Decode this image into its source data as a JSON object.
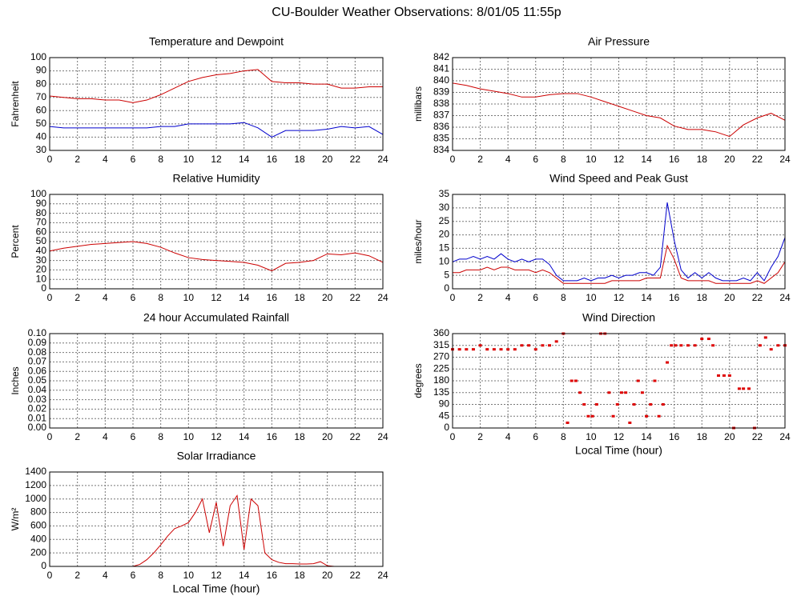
{
  "title": "CU-Boulder Weather Observations: 8/01/05 11:55p",
  "chart_data": [
    {
      "type": "line",
      "title": "Temperature and Dewpoint",
      "ylabel": "Fahrenheit",
      "x": [
        0,
        1,
        2,
        3,
        4,
        5,
        6,
        7,
        8,
        9,
        10,
        11,
        12,
        13,
        14,
        15,
        16,
        17,
        18,
        19,
        20,
        21,
        22,
        23,
        24
      ],
      "series": [
        {
          "color": "#cc0000",
          "values": [
            71,
            70,
            69,
            69,
            68,
            68,
            66,
            68,
            72,
            77,
            82,
            85,
            87,
            88,
            90,
            91,
            82,
            81,
            81,
            80,
            80,
            77,
            77,
            78,
            78
          ]
        },
        {
          "color": "#0000cc",
          "values": [
            48,
            47,
            47,
            47,
            47,
            47,
            47,
            47,
            48,
            48,
            50,
            50,
            50,
            50,
            51,
            47,
            40,
            45,
            45,
            45,
            46,
            48,
            47,
            48,
            42
          ]
        }
      ],
      "xlim": [
        0,
        24
      ],
      "xticks": [
        0,
        2,
        4,
        6,
        8,
        10,
        12,
        14,
        16,
        18,
        20,
        22,
        24
      ],
      "ylim": [
        30,
        100
      ],
      "yticks": [
        30,
        40,
        50,
        60,
        70,
        80,
        90,
        100
      ],
      "grid": true
    },
    {
      "type": "line",
      "title": "Air Pressure",
      "ylabel": "millibars",
      "x": [
        0,
        1,
        2,
        3,
        4,
        5,
        6,
        7,
        8,
        9,
        10,
        11,
        12,
        13,
        14,
        15,
        16,
        17,
        18,
        19,
        20,
        21,
        22,
        23,
        24
      ],
      "series": [
        {
          "color": "#cc0000",
          "values": [
            839.8,
            839.6,
            839.3,
            839.1,
            838.9,
            838.6,
            838.6,
            838.8,
            838.9,
            838.9,
            838.6,
            838.2,
            837.8,
            837.4,
            837.0,
            836.8,
            836.1,
            835.8,
            835.8,
            835.6,
            835.2,
            836.2,
            836.8,
            837.2,
            836.6
          ]
        }
      ],
      "xlim": [
        0,
        24
      ],
      "xticks": [
        0,
        2,
        4,
        6,
        8,
        10,
        12,
        14,
        16,
        18,
        20,
        22,
        24
      ],
      "ylim": [
        834,
        842
      ],
      "yticks": [
        834,
        835,
        836,
        837,
        838,
        839,
        840,
        841,
        842
      ],
      "grid": true
    },
    {
      "type": "line",
      "title": "Relative Humidity",
      "ylabel": "Percent",
      "x": [
        0,
        1,
        2,
        3,
        4,
        5,
        6,
        7,
        8,
        9,
        10,
        11,
        12,
        13,
        14,
        15,
        16,
        17,
        18,
        19,
        20,
        21,
        22,
        23,
        24
      ],
      "series": [
        {
          "color": "#cc0000",
          "values": [
            40,
            43,
            45,
            47,
            48,
            49,
            50,
            48,
            44,
            38,
            33,
            31,
            30,
            29,
            28,
            25,
            19,
            27,
            28,
            30,
            37,
            36,
            38,
            35,
            28
          ]
        }
      ],
      "xlim": [
        0,
        24
      ],
      "xticks": [
        0,
        2,
        4,
        6,
        8,
        10,
        12,
        14,
        16,
        18,
        20,
        22,
        24
      ],
      "ylim": [
        0,
        100
      ],
      "yticks": [
        0,
        10,
        20,
        30,
        40,
        50,
        60,
        70,
        80,
        90,
        100
      ],
      "grid": true
    },
    {
      "type": "line",
      "title": "Wind Speed and Peak Gust",
      "ylabel": "miles/hour",
      "x": [
        0,
        0.5,
        1,
        1.5,
        2,
        2.5,
        3,
        3.5,
        4,
        4.5,
        5,
        5.5,
        6,
        6.5,
        7,
        7.5,
        8,
        8.5,
        9,
        9.5,
        10,
        10.5,
        11,
        11.5,
        12,
        12.5,
        13,
        13.5,
        14,
        14.5,
        15,
        15.5,
        16,
        16.5,
        17,
        17.5,
        18,
        18.5,
        19,
        19.5,
        20,
        20.5,
        21,
        21.5,
        22,
        22.5,
        23,
        23.5,
        24
      ],
      "series": [
        {
          "color": "#0000cc",
          "values": [
            10,
            11,
            11,
            12,
            11,
            12,
            11,
            13,
            11,
            10,
            11,
            10,
            11,
            11,
            9,
            5,
            3,
            3,
            3,
            4,
            3,
            4,
            4,
            5,
            4,
            5,
            5,
            6,
            6,
            5,
            8,
            32,
            18,
            7,
            4,
            6,
            4,
            6,
            4,
            3,
            3,
            3,
            4,
            3,
            6,
            3,
            8,
            12,
            19
          ]
        },
        {
          "color": "#cc0000",
          "values": [
            6,
            6,
            7,
            7,
            7,
            8,
            7,
            8,
            8,
            7,
            7,
            7,
            6,
            7,
            6,
            4,
            2,
            2,
            2,
            2,
            2,
            2,
            2,
            3,
            3,
            3,
            3,
            3,
            4,
            4,
            4,
            16,
            11,
            4,
            3,
            3,
            3,
            3,
            2,
            2,
            2,
            2,
            2,
            2,
            3,
            2,
            4,
            6,
            10
          ]
        }
      ],
      "xlim": [
        0,
        24
      ],
      "xticks": [
        0,
        2,
        4,
        6,
        8,
        10,
        12,
        14,
        16,
        18,
        20,
        22,
        24
      ],
      "ylim": [
        0,
        35
      ],
      "yticks": [
        0,
        5,
        10,
        15,
        20,
        25,
        30,
        35
      ],
      "grid": true
    },
    {
      "type": "line",
      "title": "24 hour Accumulated Rainfall",
      "ylabel": "Inches",
      "x": [
        0,
        24
      ],
      "series": [
        {
          "color": "#cc0000",
          "values": [
            0,
            0
          ]
        }
      ],
      "xlim": [
        0,
        24
      ],
      "xticks": [
        0,
        2,
        4,
        6,
        8,
        10,
        12,
        14,
        16,
        18,
        20,
        22,
        24
      ],
      "ylim": [
        0,
        0.1
      ],
      "yticks": [
        {
          "value": 0,
          "label": "0.00"
        },
        {
          "value": 0.01,
          "label": "0.01"
        },
        {
          "value": 0.02,
          "label": "0.02"
        },
        {
          "value": 0.03,
          "label": "0.03"
        },
        {
          "value": 0.04,
          "label": "0.04"
        },
        {
          "value": 0.05,
          "label": "0.05"
        },
        {
          "value": 0.06,
          "label": "0.06"
        },
        {
          "value": 0.07,
          "label": "0.07"
        },
        {
          "value": 0.08,
          "label": "0.08"
        },
        {
          "value": 0.09,
          "label": "0.09"
        },
        {
          "value": 0.1,
          "label": "0.10"
        }
      ],
      "grid": true
    },
    {
      "type": "scatter",
      "title": "Wind Direction",
      "ylabel": "degrees",
      "xlabel": "Local Time (hour)",
      "x": [
        0,
        0.5,
        1,
        1.5,
        2,
        2.5,
        3,
        3.5,
        4,
        4.5,
        5,
        5.5,
        6,
        6.5,
        7,
        7.5,
        8,
        8.3,
        8.6,
        8.9,
        9.2,
        9.5,
        9.8,
        10.1,
        10.4,
        10.7,
        11,
        11.3,
        11.6,
        11.9,
        12.2,
        12.5,
        12.8,
        13.1,
        13.4,
        13.7,
        14,
        14.3,
        14.6,
        14.9,
        15.2,
        15.5,
        15.8,
        16.1,
        16.5,
        17,
        17.5,
        18,
        18.5,
        18.8,
        19.2,
        19.6,
        20,
        20.3,
        20.7,
        21,
        21.4,
        21.8,
        22.2,
        22.6,
        23,
        23.5,
        24
      ],
      "series": [
        {
          "color": "#dd0000",
          "values": [
            300,
            300,
            300,
            300,
            315,
            300,
            300,
            300,
            300,
            300,
            315,
            315,
            300,
            315,
            315,
            330,
            360,
            20,
            180,
            180,
            135,
            90,
            45,
            45,
            90,
            360,
            360,
            135,
            45,
            90,
            135,
            135,
            20,
            90,
            180,
            135,
            45,
            90,
            180,
            45,
            90,
            250,
            315,
            315,
            315,
            315,
            315,
            340,
            340,
            315,
            200,
            200,
            200,
            0,
            150,
            150,
            150,
            0,
            315,
            345,
            300,
            315,
            315
          ]
        }
      ],
      "xlim": [
        0,
        24
      ],
      "xticks": [
        0,
        2,
        4,
        6,
        8,
        10,
        12,
        14,
        16,
        18,
        20,
        22,
        24
      ],
      "ylim": [
        0,
        360
      ],
      "yticks": [
        0,
        45,
        90,
        135,
        180,
        225,
        270,
        315,
        360
      ],
      "grid": true
    },
    {
      "type": "line",
      "title": "Solar Irradiance",
      "ylabel": "W/m²",
      "xlabel": "Local Time (hour)",
      "x": [
        0,
        0.5,
        1,
        1.5,
        2,
        2.5,
        3,
        3.5,
        4,
        4.5,
        5,
        5.5,
        6,
        6.5,
        7,
        7.5,
        8,
        8.5,
        9,
        9.5,
        10,
        10.5,
        11,
        11.5,
        12,
        12.5,
        13,
        13.5,
        14,
        14.5,
        15,
        15.5,
        16,
        16.5,
        17,
        17.5,
        18,
        18.5,
        19,
        19.5,
        20,
        20.5,
        21,
        21.5,
        22,
        22.5,
        23,
        23.5,
        24
      ],
      "series": [
        {
          "color": "#cc0000",
          "values": [
            0,
            0,
            0,
            0,
            0,
            0,
            0,
            0,
            0,
            0,
            0,
            0,
            0,
            30,
            100,
            200,
            320,
            450,
            560,
            600,
            650,
            800,
            1000,
            500,
            950,
            300,
            900,
            1050,
            250,
            1000,
            900,
            200,
            100,
            60,
            40,
            40,
            35,
            35,
            40,
            70,
            10,
            0,
            0,
            0,
            0,
            0,
            0,
            0,
            0
          ]
        }
      ],
      "xlim": [
        0,
        24
      ],
      "xticks": [
        0,
        2,
        4,
        6,
        8,
        10,
        12,
        14,
        16,
        18,
        20,
        22,
        24
      ],
      "ylim": [
        0,
        1400
      ],
      "yticks": [
        0,
        200,
        400,
        600,
        800,
        1000,
        1200,
        1400
      ],
      "grid": true
    }
  ]
}
